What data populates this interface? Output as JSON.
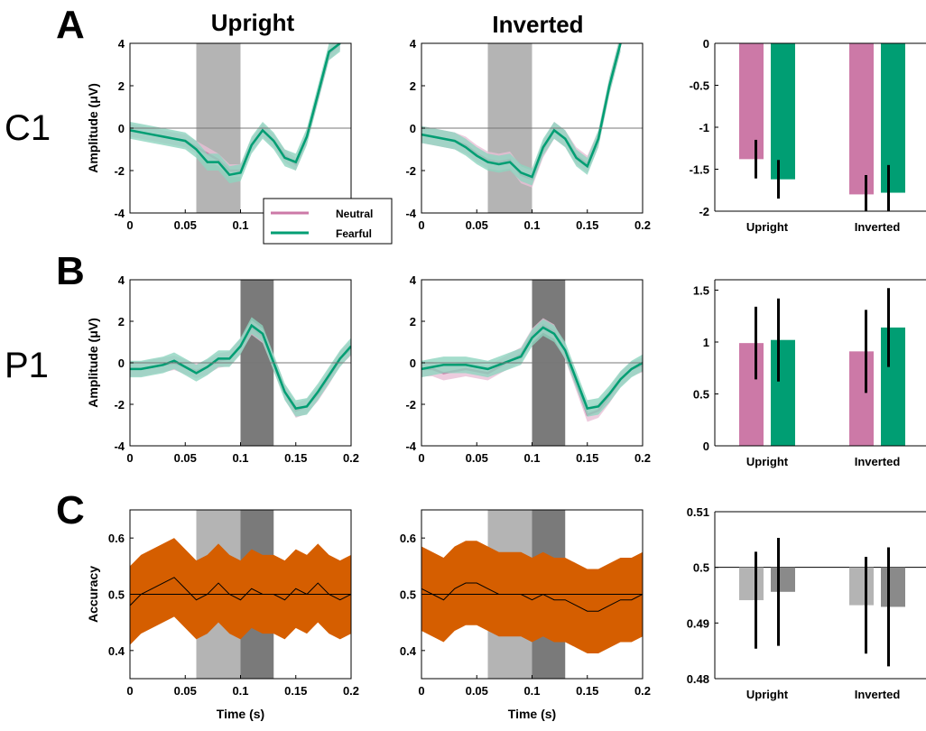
{
  "figure": {
    "panel_letters": [
      "A",
      "B",
      "C"
    ],
    "row_labels": [
      "C1",
      "P1"
    ],
    "column_titles": [
      "Upright",
      "Inverted"
    ],
    "legend": {
      "items": [
        "Neutral",
        "Fearful"
      ]
    }
  },
  "colors": {
    "neutral": "#cc79a7",
    "neutral_band": "#e9bfd6",
    "fearful": "#009e73",
    "fearful_band": "#8fd4bf",
    "accuracy_band": "#d55e00",
    "shade_early": "#b4b4b4",
    "shade_late": "#7a7a7a",
    "bar_upright": "#b4b4b4",
    "bar_inverted": "#8a8a8a"
  },
  "chart_data": [
    {
      "id": "c1-upright",
      "type": "line",
      "title": "Upright",
      "xlabel": "",
      "ylabel": "Amplitude (μV)",
      "xlim": [
        0,
        0.2
      ],
      "ylim": [
        -4,
        4
      ],
      "xticks": [
        0,
        0.05,
        0.1
      ],
      "xtick_labels": [
        "0",
        "0.05",
        "0.1"
      ],
      "yticks": [
        -4,
        -2,
        0,
        2,
        4
      ],
      "ytick_labels": [
        "-4",
        "-2",
        "0",
        "2",
        "4"
      ],
      "shaded_windows": [
        [
          0.06,
          0.1
        ]
      ],
      "series": [
        {
          "name": "Neutral",
          "x": [
            0,
            0.01,
            0.02,
            0.03,
            0.04,
            0.05,
            0.06,
            0.07,
            0.08,
            0.09,
            0.1,
            0.11,
            0.12,
            0.13,
            0.14,
            0.15,
            0.16,
            0.17,
            0.18,
            0.19
          ],
          "y": [
            -0.1,
            -0.2,
            -0.3,
            -0.4,
            -0.5,
            -0.6,
            -0.9,
            -1.2,
            -1.5,
            -2.0,
            -2.0,
            -0.8,
            -0.1,
            -0.6,
            -1.3,
            -1.7,
            -0.4,
            1.5,
            3.5,
            4.0
          ],
          "band": 0.3
        },
        {
          "name": "Fearful",
          "x": [
            0,
            0.01,
            0.02,
            0.03,
            0.04,
            0.05,
            0.06,
            0.07,
            0.08,
            0.09,
            0.1,
            0.11,
            0.12,
            0.13,
            0.14,
            0.15,
            0.16,
            0.17,
            0.18,
            0.19
          ],
          "y": [
            -0.1,
            -0.2,
            -0.3,
            -0.4,
            -0.5,
            -0.6,
            -1.0,
            -1.6,
            -1.6,
            -2.2,
            -2.1,
            -0.8,
            -0.1,
            -0.6,
            -1.4,
            -1.6,
            -0.4,
            1.6,
            3.6,
            4.0
          ],
          "band": 0.4
        }
      ]
    },
    {
      "id": "c1-inverted",
      "type": "line",
      "title": "Inverted",
      "xlabel": "",
      "ylabel": "",
      "xlim": [
        0,
        0.2
      ],
      "ylim": [
        -4,
        4
      ],
      "xticks": [
        0,
        0.05,
        0.1,
        0.15,
        0.2
      ],
      "xtick_labels": [
        "0",
        "0.05",
        "0.1",
        "0.15",
        "0.2"
      ],
      "yticks": [
        -4,
        -2,
        0,
        2,
        4
      ],
      "ytick_labels": [
        "-4",
        "-2",
        "0",
        "2",
        "4"
      ],
      "shaded_windows": [
        [
          0.06,
          0.1
        ]
      ],
      "series": [
        {
          "name": "Neutral",
          "x": [
            0,
            0.01,
            0.02,
            0.03,
            0.04,
            0.05,
            0.06,
            0.07,
            0.08,
            0.09,
            0.1,
            0.11,
            0.12,
            0.13,
            0.14,
            0.15,
            0.16,
            0.17,
            0.18
          ],
          "y": [
            -0.3,
            -0.4,
            -0.5,
            -0.6,
            -0.8,
            -1.2,
            -1.5,
            -1.6,
            -1.5,
            -2.2,
            -2.4,
            -1.0,
            -0.1,
            -0.5,
            -1.3,
            -1.7,
            -0.5,
            2.0,
            4.0
          ],
          "band": 0.4
        },
        {
          "name": "Fearful",
          "x": [
            0,
            0.01,
            0.02,
            0.03,
            0.04,
            0.05,
            0.06,
            0.07,
            0.08,
            0.09,
            0.1,
            0.11,
            0.12,
            0.13,
            0.14,
            0.15,
            0.16,
            0.17,
            0.18
          ],
          "y": [
            -0.3,
            -0.4,
            -0.5,
            -0.6,
            -0.9,
            -1.3,
            -1.6,
            -1.7,
            -1.6,
            -2.1,
            -2.3,
            -0.9,
            -0.1,
            -0.5,
            -1.4,
            -1.8,
            -0.5,
            2.0,
            4.0
          ],
          "band": 0.4
        }
      ]
    },
    {
      "id": "c1-bars",
      "type": "bar",
      "categories": [
        "Upright",
        "Inverted"
      ],
      "ylim": [
        -2,
        0
      ],
      "yticks": [
        -2,
        -1.5,
        -1,
        -0.5,
        0
      ],
      "ytick_labels": [
        "-2",
        "-1.5",
        "-1",
        "-0.5",
        "0"
      ],
      "series": [
        {
          "name": "Neutral",
          "values": [
            -1.38,
            -1.8
          ],
          "errors": [
            0.23,
            0.23
          ]
        },
        {
          "name": "Fearful",
          "values": [
            -1.62,
            -1.78
          ],
          "errors": [
            0.23,
            0.33
          ]
        }
      ]
    },
    {
      "id": "p1-upright",
      "type": "line",
      "xlabel": "",
      "ylabel": "Amplitude (μV)",
      "xlim": [
        0,
        0.2
      ],
      "ylim": [
        -4,
        4
      ],
      "xticks": [
        0,
        0.05,
        0.1,
        0.15,
        0.2
      ],
      "xtick_labels": [
        "0",
        "0.05",
        "0.1",
        "0.15",
        "0.2"
      ],
      "yticks": [
        -4,
        -2,
        0,
        2,
        4
      ],
      "ytick_labels": [
        "-4",
        "-2",
        "0",
        "2",
        "4"
      ],
      "shaded_windows": [
        [
          0.1,
          0.13
        ]
      ],
      "series": [
        {
          "name": "Neutral",
          "x": [
            0,
            0.01,
            0.02,
            0.03,
            0.04,
            0.05,
            0.06,
            0.07,
            0.08,
            0.09,
            0.1,
            0.11,
            0.12,
            0.13,
            0.14,
            0.15,
            0.16,
            0.17,
            0.18,
            0.19,
            0.2
          ],
          "y": [
            -0.3,
            -0.3,
            -0.2,
            -0.1,
            0.0,
            -0.2,
            -0.4,
            -0.2,
            0.1,
            0.2,
            0.8,
            1.7,
            1.3,
            0.0,
            -1.4,
            -2.3,
            -2.1,
            -1.5,
            -0.7,
            0.2,
            0.7
          ],
          "band": 0.35
        },
        {
          "name": "Fearful",
          "x": [
            0,
            0.01,
            0.02,
            0.03,
            0.04,
            0.05,
            0.06,
            0.07,
            0.08,
            0.09,
            0.1,
            0.11,
            0.12,
            0.13,
            0.14,
            0.15,
            0.16,
            0.17,
            0.18,
            0.19,
            0.2
          ],
          "y": [
            -0.3,
            -0.3,
            -0.2,
            -0.1,
            0.1,
            -0.2,
            -0.5,
            -0.2,
            0.2,
            0.2,
            0.8,
            1.8,
            1.4,
            0.0,
            -1.4,
            -2.2,
            -2.1,
            -1.4,
            -0.6,
            0.2,
            0.8
          ],
          "band": 0.4
        }
      ]
    },
    {
      "id": "p1-inverted",
      "type": "line",
      "xlabel": "",
      "ylabel": "",
      "xlim": [
        0,
        0.2
      ],
      "ylim": [
        -4,
        4
      ],
      "xticks": [
        0,
        0.05,
        0.1,
        0.15,
        0.2
      ],
      "xtick_labels": [
        "0",
        "0.05",
        "0.1",
        "0.15",
        "0.2"
      ],
      "yticks": [
        -4,
        -2,
        0,
        2,
        4
      ],
      "ytick_labels": [
        "-4",
        "-2",
        "0",
        "2",
        "4"
      ],
      "shaded_windows": [
        [
          0.1,
          0.13
        ]
      ],
      "series": [
        {
          "name": "Neutral",
          "x": [
            0,
            0.01,
            0.02,
            0.03,
            0.04,
            0.05,
            0.06,
            0.07,
            0.08,
            0.09,
            0.1,
            0.11,
            0.12,
            0.13,
            0.14,
            0.15,
            0.16,
            0.17,
            0.18,
            0.19,
            0.2
          ],
          "y": [
            -0.3,
            -0.3,
            -0.5,
            -0.4,
            -0.3,
            -0.4,
            -0.5,
            -0.2,
            0.1,
            0.4,
            1.3,
            1.8,
            1.5,
            0.5,
            -1.0,
            -2.5,
            -2.3,
            -1.6,
            -0.8,
            -0.3,
            -0.1
          ],
          "band": 0.35
        },
        {
          "name": "Fearful",
          "x": [
            0,
            0.01,
            0.02,
            0.03,
            0.04,
            0.05,
            0.06,
            0.07,
            0.08,
            0.09,
            0.1,
            0.11,
            0.12,
            0.13,
            0.14,
            0.15,
            0.16,
            0.17,
            0.18,
            0.19,
            0.2
          ],
          "y": [
            -0.3,
            -0.2,
            -0.1,
            -0.1,
            -0.1,
            -0.2,
            -0.3,
            -0.1,
            0.1,
            0.3,
            1.2,
            1.7,
            1.4,
            0.6,
            -0.8,
            -2.2,
            -2.1,
            -1.5,
            -0.8,
            -0.3,
            0.0
          ],
          "band": 0.4
        }
      ]
    },
    {
      "id": "p1-bars",
      "type": "bar",
      "categories": [
        "Upright",
        "Inverted"
      ],
      "ylim": [
        0,
        1.6
      ],
      "yticks": [
        0,
        0.5,
        1,
        1.5
      ],
      "ytick_labels": [
        "0",
        "0.5",
        "1",
        "1.5"
      ],
      "series": [
        {
          "name": "Neutral",
          "values": [
            0.99,
            0.91
          ],
          "errors": [
            0.35,
            0.4
          ]
        },
        {
          "name": "Fearful",
          "values": [
            1.02,
            1.14
          ],
          "errors": [
            0.4,
            0.38
          ]
        }
      ]
    },
    {
      "id": "acc-upright",
      "type": "line",
      "xlabel": "Time (s)",
      "ylabel": "Accuracy",
      "xlim": [
        0,
        0.2
      ],
      "ylim": [
        0.35,
        0.65
      ],
      "xticks": [
        0,
        0.05,
        0.1,
        0.15,
        0.2
      ],
      "xtick_labels": [
        "0",
        "0.05",
        "0.1",
        "0.15",
        "0.2"
      ],
      "yticks": [
        0.4,
        0.5,
        0.6
      ],
      "ytick_labels": [
        "0.4",
        "0.5",
        "0.6"
      ],
      "chance": 0.5,
      "shaded_windows": [
        [
          0.06,
          0.1
        ],
        [
          0.1,
          0.13
        ]
      ],
      "series": [
        {
          "name": "",
          "x": [
            0,
            0.01,
            0.02,
            0.03,
            0.04,
            0.05,
            0.06,
            0.07,
            0.08,
            0.09,
            0.1,
            0.11,
            0.12,
            0.13,
            0.14,
            0.15,
            0.16,
            0.17,
            0.18,
            0.19,
            0.2
          ],
          "y": [
            0.48,
            0.5,
            0.51,
            0.52,
            0.53,
            0.51,
            0.49,
            0.5,
            0.52,
            0.5,
            0.49,
            0.51,
            0.5,
            0.5,
            0.49,
            0.51,
            0.5,
            0.52,
            0.5,
            0.49,
            0.5
          ],
          "band": 0.07
        }
      ]
    },
    {
      "id": "acc-inverted",
      "type": "line",
      "xlabel": "Time (s)",
      "ylabel": "",
      "xlim": [
        0,
        0.2
      ],
      "ylim": [
        0.35,
        0.65
      ],
      "xticks": [
        0,
        0.05,
        0.1,
        0.15,
        0.2
      ],
      "xtick_labels": [
        "0",
        "0.05",
        "0.1",
        "0.15",
        "0.2"
      ],
      "yticks": [
        0.4,
        0.5,
        0.6
      ],
      "ytick_labels": [
        "0.4",
        "0.5",
        "0.6"
      ],
      "chance": 0.5,
      "shaded_windows": [
        [
          0.06,
          0.1
        ],
        [
          0.1,
          0.13
        ]
      ],
      "series": [
        {
          "name": "",
          "x": [
            0,
            0.01,
            0.02,
            0.03,
            0.04,
            0.05,
            0.06,
            0.07,
            0.08,
            0.09,
            0.1,
            0.11,
            0.12,
            0.13,
            0.14,
            0.15,
            0.16,
            0.17,
            0.18,
            0.19,
            0.2
          ],
          "y": [
            0.51,
            0.5,
            0.49,
            0.51,
            0.52,
            0.52,
            0.51,
            0.5,
            0.5,
            0.5,
            0.49,
            0.5,
            0.49,
            0.49,
            0.48,
            0.47,
            0.47,
            0.48,
            0.49,
            0.49,
            0.5
          ],
          "band": 0.075
        }
      ]
    },
    {
      "id": "acc-bars",
      "type": "bar",
      "categories": [
        "Upright",
        "Inverted"
      ],
      "ylim": [
        0.48,
        0.51
      ],
      "yticks": [
        0.48,
        0.49,
        0.5,
        0.51
      ],
      "ytick_labels": [
        "0.48",
        "0.49",
        "0.5",
        "0.51"
      ],
      "baseline": 0.5,
      "series": [
        {
          "name": "",
          "values": [
            0.4941,
            0.4932
          ],
          "errors": [
            0.0087,
            0.0087
          ]
        },
        {
          "name": "",
          "values": [
            0.4956,
            0.4929
          ],
          "errors": [
            0.0097,
            0.0107
          ]
        }
      ]
    }
  ]
}
